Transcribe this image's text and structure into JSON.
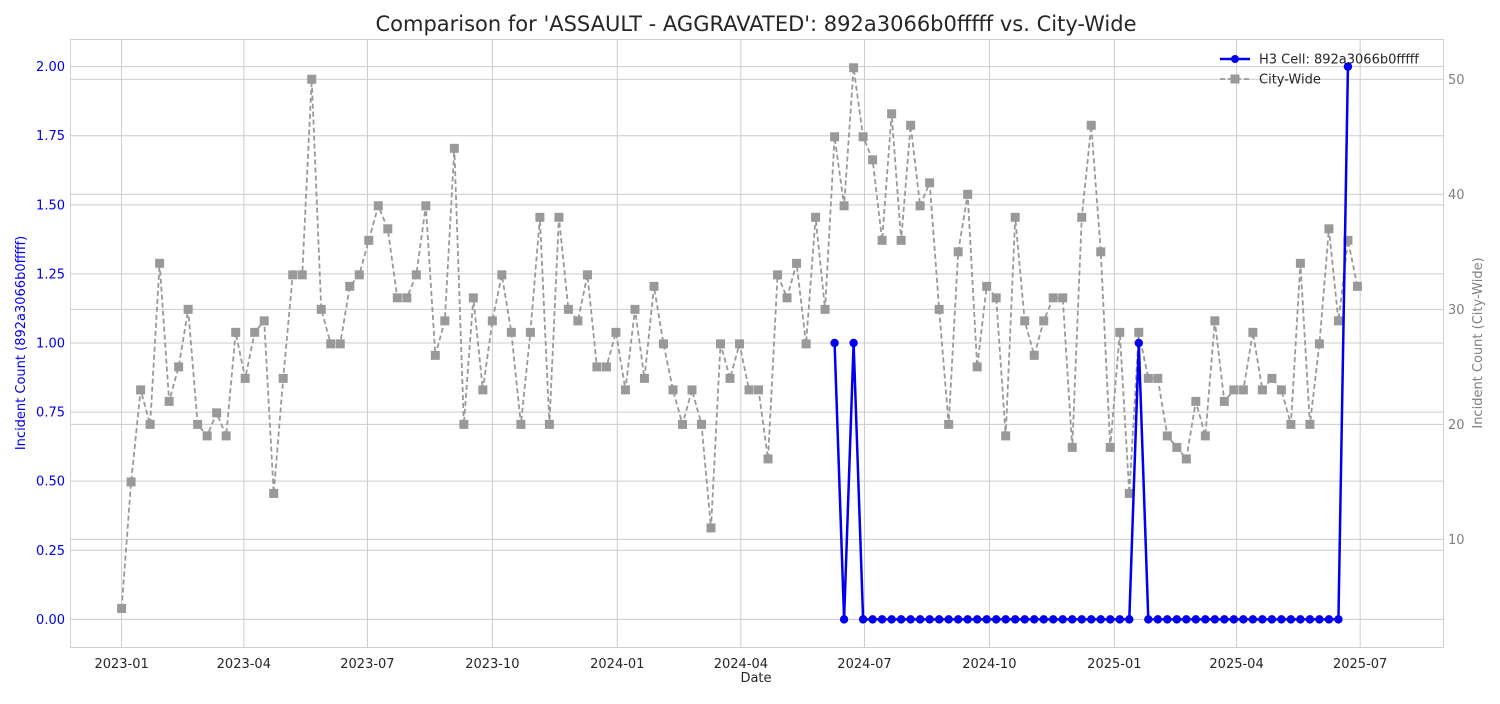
{
  "chart_data": {
    "type": "line",
    "title": "Comparison for 'ASSAULT - AGGRAVATED': 892a3066b0fffff vs. City-Wide",
    "xlabel": "Date",
    "ylabel_left": "Incident Count (892a3066b0fffff)",
    "ylabel_right": "Incident Count (City-Wide)",
    "ylim_left": [
      -0.1,
      2.1
    ],
    "ylim_right": [
      0.65,
      53.5
    ],
    "xlim": [
      "2022-11-24",
      "2025-08-31"
    ],
    "grid": true,
    "legend_position": "top-right",
    "x_ticks": [
      "2023-01",
      "2023-04",
      "2023-07",
      "2023-10",
      "2024-01",
      "2024-04",
      "2024-07",
      "2024-10",
      "2025-01",
      "2025-04",
      "2025-07"
    ],
    "y_ticks_left": [
      "0.00",
      "0.25",
      "0.50",
      "0.75",
      "1.00",
      "1.25",
      "1.50",
      "1.75",
      "2.00"
    ],
    "y_ticks_right": [
      "10",
      "20",
      "30",
      "40",
      "50"
    ],
    "colors": {
      "cell": "#0000ee",
      "city": "#999999",
      "grid": "#cccccc",
      "left_axis": "#0000ee",
      "right_axis": "#808080"
    },
    "series": [
      {
        "name": "H3 Cell: 892a3066b0fffff",
        "axis": "left",
        "x": [
          "2024-06-09",
          "2024-06-16",
          "2024-06-23",
          "2024-06-30",
          "2024-07-07",
          "2024-07-14",
          "2024-07-21",
          "2024-07-28",
          "2024-08-04",
          "2024-08-11",
          "2024-08-18",
          "2024-08-25",
          "2024-09-01",
          "2024-09-08",
          "2024-09-15",
          "2024-09-22",
          "2024-09-29",
          "2024-10-06",
          "2024-10-13",
          "2024-10-20",
          "2024-10-27",
          "2024-11-03",
          "2024-11-10",
          "2024-11-17",
          "2024-11-24",
          "2024-12-01",
          "2024-12-08",
          "2024-12-15",
          "2024-12-22",
          "2024-12-29",
          "2025-01-05",
          "2025-01-12",
          "2025-01-19",
          "2025-01-26",
          "2025-02-02",
          "2025-02-09",
          "2025-02-16",
          "2025-02-23",
          "2025-03-02",
          "2025-03-09",
          "2025-03-16",
          "2025-03-23",
          "2025-03-30",
          "2025-04-06",
          "2025-04-13",
          "2025-04-20",
          "2025-04-27",
          "2025-05-04",
          "2025-05-11",
          "2025-05-18",
          "2025-05-25",
          "2025-06-01",
          "2025-06-08",
          "2025-06-15",
          "2025-06-22"
        ],
        "values": [
          1,
          0,
          1,
          0,
          0,
          0,
          0,
          0,
          0,
          0,
          0,
          0,
          0,
          0,
          0,
          0,
          0,
          0,
          0,
          0,
          0,
          0,
          0,
          0,
          0,
          0,
          0,
          0,
          0,
          0,
          0,
          0,
          1,
          0,
          0,
          0,
          0,
          0,
          0,
          0,
          0,
          0,
          0,
          0,
          0,
          0,
          0,
          0,
          0,
          0,
          0,
          0,
          0,
          0,
          2
        ]
      },
      {
        "name": "City-Wide",
        "axis": "right",
        "x": [
          "2023-01-01",
          "2023-01-08",
          "2023-01-15",
          "2023-01-22",
          "2023-01-29",
          "2023-02-05",
          "2023-02-12",
          "2023-02-19",
          "2023-02-26",
          "2023-03-05",
          "2023-03-12",
          "2023-03-19",
          "2023-03-26",
          "2023-04-02",
          "2023-04-09",
          "2023-04-16",
          "2023-04-23",
          "2023-04-30",
          "2023-05-07",
          "2023-05-14",
          "2023-05-21",
          "2023-05-28",
          "2023-06-04",
          "2023-06-11",
          "2023-06-18",
          "2023-06-25",
          "2023-07-02",
          "2023-07-09",
          "2023-07-16",
          "2023-07-23",
          "2023-07-30",
          "2023-08-06",
          "2023-08-13",
          "2023-08-20",
          "2023-08-27",
          "2023-09-03",
          "2023-09-10",
          "2023-09-17",
          "2023-09-24",
          "2023-10-01",
          "2023-10-08",
          "2023-10-15",
          "2023-10-22",
          "2023-10-29",
          "2023-11-05",
          "2023-11-12",
          "2023-11-19",
          "2023-11-26",
          "2023-12-03",
          "2023-12-10",
          "2023-12-17",
          "2023-12-24",
          "2023-12-31",
          "2024-01-07",
          "2024-01-14",
          "2024-01-21",
          "2024-01-28",
          "2024-02-04",
          "2024-02-11",
          "2024-02-18",
          "2024-02-25",
          "2024-03-03",
          "2024-03-10",
          "2024-03-17",
          "2024-03-24",
          "2024-03-31",
          "2024-04-07",
          "2024-04-14",
          "2024-04-21",
          "2024-04-28",
          "2024-05-05",
          "2024-05-12",
          "2024-05-19",
          "2024-05-26",
          "2024-06-02",
          "2024-06-09",
          "2024-06-16",
          "2024-06-23",
          "2024-06-30",
          "2024-07-07",
          "2024-07-14",
          "2024-07-21",
          "2024-07-28",
          "2024-08-04",
          "2024-08-11",
          "2024-08-18",
          "2024-08-25",
          "2024-09-01",
          "2024-09-08",
          "2024-09-15",
          "2024-09-22",
          "2024-09-29",
          "2024-10-06",
          "2024-10-13",
          "2024-10-20",
          "2024-10-27",
          "2024-11-03",
          "2024-11-10",
          "2024-11-17",
          "2024-11-24",
          "2024-12-01",
          "2024-12-08",
          "2024-12-15",
          "2024-12-22",
          "2024-12-29",
          "2025-01-05",
          "2025-01-12",
          "2025-01-19",
          "2025-01-26",
          "2025-02-02",
          "2025-02-09",
          "2025-02-16",
          "2025-02-23",
          "2025-03-02",
          "2025-03-09",
          "2025-03-16",
          "2025-03-23",
          "2025-03-30",
          "2025-04-06",
          "2025-04-13",
          "2025-04-20",
          "2025-04-27",
          "2025-05-04",
          "2025-05-11",
          "2025-05-18",
          "2025-05-25",
          "2025-06-01",
          "2025-06-08",
          "2025-06-15",
          "2025-06-22",
          "2025-06-29"
        ],
        "values": [
          4,
          15,
          23,
          20,
          34,
          22,
          25,
          30,
          20,
          19,
          21,
          19,
          28,
          24,
          28,
          29,
          14,
          24,
          33,
          33,
          50,
          30,
          27,
          27,
          32,
          33,
          36,
          39,
          37,
          31,
          31,
          33,
          39,
          26,
          29,
          44,
          20,
          31,
          23,
          29,
          33,
          28,
          20,
          28,
          38,
          20,
          38,
          30,
          29,
          33,
          25,
          25,
          28,
          23,
          30,
          24,
          32,
          27,
          23,
          20,
          23,
          20,
          11,
          27,
          24,
          27,
          23,
          23,
          17,
          33,
          31,
          34,
          27,
          38,
          30,
          45,
          39,
          51,
          45,
          43,
          36,
          47,
          36,
          46,
          39,
          41,
          30,
          20,
          35,
          40,
          25,
          32,
          31,
          19,
          38,
          29,
          26,
          29,
          31,
          31,
          18,
          38,
          46,
          35,
          18,
          28,
          14,
          28,
          24,
          24,
          19,
          18,
          17,
          22,
          19,
          29,
          22,
          23,
          23,
          28,
          23,
          24,
          23,
          20,
          34,
          20,
          27,
          37,
          29,
          36,
          32
        ]
      }
    ]
  }
}
